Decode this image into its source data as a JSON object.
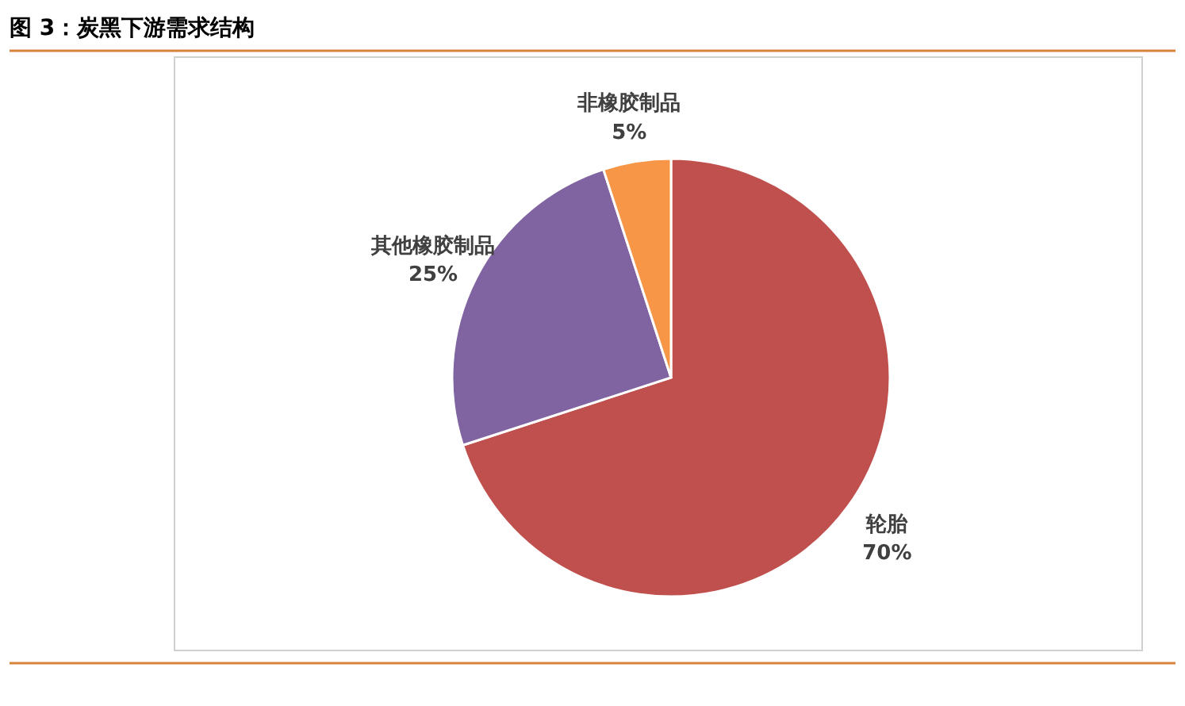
{
  "chart_data": {
    "type": "pie",
    "title": "图 3：炭黑下游需求结构",
    "categories": [
      "轮胎",
      "其他橡胶制品",
      "非橡胶制品"
    ],
    "values": [
      70,
      25,
      5
    ],
    "colors": [
      "#c0504d",
      "#8064a2",
      "#f79646"
    ],
    "value_labels": [
      "70%",
      "25%",
      "5%"
    ],
    "legend": false
  }
}
